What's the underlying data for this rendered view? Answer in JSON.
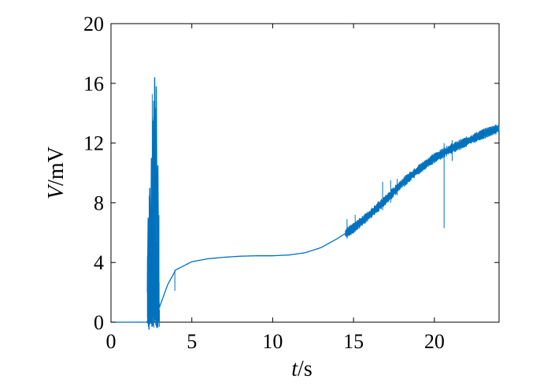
{
  "chart_data": {
    "type": "line",
    "xlabel": {
      "var": "t",
      "unit": "/s"
    },
    "ylabel": {
      "var": "V",
      "unit": "/mV"
    },
    "xlim": [
      0,
      24
    ],
    "ylim": [
      0,
      20
    ],
    "xticks": [
      0,
      5,
      10,
      15,
      20
    ],
    "yticks": [
      0,
      4,
      8,
      12,
      16,
      20
    ],
    "grid": false,
    "series": [
      {
        "color": "#0072BD",
        "baseline": {
          "x": [
            0,
            2.2,
            3.0,
            3.5,
            4.0,
            5.0,
            6.0,
            7.0,
            8.0,
            9.0,
            10.0,
            11.0,
            12.0,
            13.0,
            14.0,
            15.0,
            16.0,
            17.0,
            18.0,
            19.0,
            20.0,
            21.0,
            22.0,
            23.0,
            24.0
          ],
          "y": [
            0,
            0,
            1.0,
            2.5,
            3.5,
            4.05,
            4.25,
            4.35,
            4.42,
            4.45,
            4.45,
            4.5,
            4.65,
            5.0,
            5.6,
            6.3,
            7.2,
            8.2,
            9.3,
            10.2,
            11.0,
            11.6,
            12.1,
            12.6,
            13.0
          ]
        },
        "burst": {
          "x": [
            2.25,
            2.3,
            2.35,
            2.4,
            2.45,
            2.5,
            2.55,
            2.6,
            2.65,
            2.7,
            2.75,
            2.8,
            2.85,
            2.9,
            2.95,
            3.0
          ],
          "y": [
            2.0,
            7.0,
            -0.5,
            9.0,
            3.0,
            11.0,
            -0.3,
            13.5,
            2.0,
            16.4,
            3.0,
            15.8,
            5.0,
            10.5,
            1.5,
            1.0
          ]
        },
        "noise_band": {
          "x_start": 14.5,
          "x_end": 24,
          "amplitude": 0.25
        },
        "spikes": [
          {
            "x": 14.6,
            "low": 5.6,
            "high": 6.9
          },
          {
            "x": 15.1,
            "low": 6.2,
            "high": 7.2
          },
          {
            "x": 16.8,
            "low": 7.5,
            "high": 9.4
          },
          {
            "x": 17.3,
            "low": 8.0,
            "high": 9.5
          },
          {
            "x": 17.7,
            "low": 8.5,
            "high": 9.6
          },
          {
            "x": 20.6,
            "low": 6.3,
            "high": 12.0
          },
          {
            "x": 21.1,
            "low": 10.8,
            "high": 12.2
          },
          {
            "x": 3.95,
            "low": 2.1,
            "high": 3.5
          }
        ]
      }
    ]
  }
}
